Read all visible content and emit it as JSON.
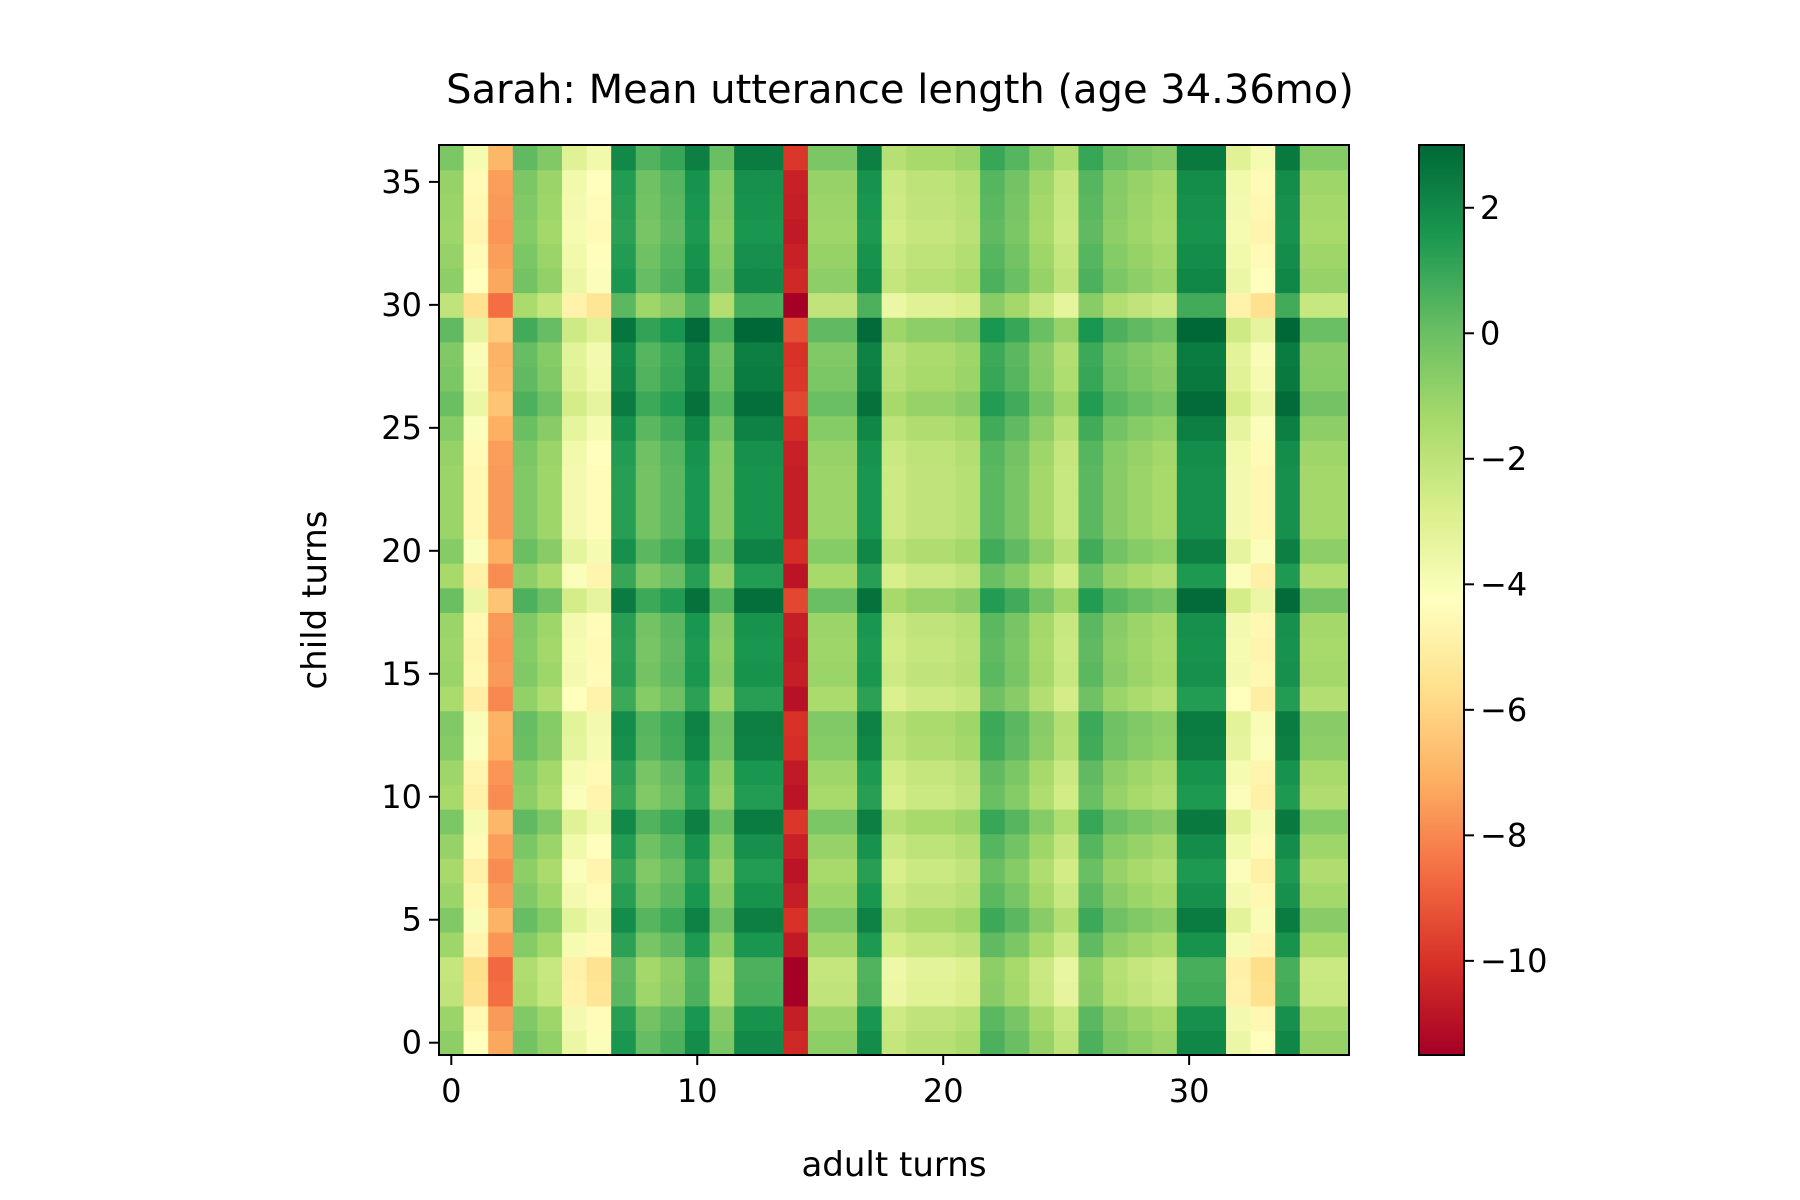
{
  "chart_data": {
    "type": "heatmap",
    "title": "Sarah: Mean utterance length (age 34.36mo)",
    "xlabel": "adult turns",
    "ylabel": "child turns",
    "colormap": "RdYlGn",
    "xlim": [
      -0.5,
      36.5
    ],
    "ylim": [
      -0.5,
      36.5
    ],
    "color_range": [
      -11.5,
      3.0
    ],
    "x_ticks": [
      0,
      10,
      20,
      30
    ],
    "y_ticks": [
      0,
      5,
      10,
      15,
      20,
      25,
      30,
      35
    ],
    "colorbar_ticks": [
      2,
      0,
      -2,
      -4,
      -6,
      -8,
      -10
    ],
    "tick_labels": {
      "x": [
        "0",
        "10",
        "20",
        "30"
      ],
      "y": [
        "0",
        "5",
        "10",
        "15",
        "20",
        "25",
        "30",
        "35"
      ],
      "colorbar": [
        "2",
        "0",
        "−2",
        "−4",
        "−6",
        "−8",
        "−10"
      ]
    },
    "value_model": "value[row][col] = row_effect[row] + col_effect[col]",
    "col_effect": [
      -0.8,
      -4.3,
      -7.3,
      -0.2,
      -0.9,
      -3.5,
      -4.1,
      1.6,
      0.1,
      0.6,
      1.9,
      -0.4,
      2.0,
      2.0,
      -10.3,
      -0.8,
      -0.8,
      1.9,
      -2.2,
      -1.8,
      -1.8,
      -1.5,
      0.6,
      0.0,
      -1.0,
      -2.0,
      0.6,
      -0.4,
      -0.8,
      -1.1,
      2.1,
      2.1,
      -3.5,
      -4.3,
      2.1,
      -1.0,
      -1.0
    ],
    "row_effect": [
      0.0,
      -0.3,
      -1.3,
      -1.4,
      -0.4,
      0.3,
      -0.3,
      -0.6,
      -0.2,
      0.4,
      -0.6,
      -0.4,
      0.2,
      0.3,
      -0.7,
      -0.3,
      -0.4,
      -0.3,
      0.8,
      -0.6,
      0.2,
      -0.3,
      -0.3,
      -0.3,
      -0.2,
      0.2,
      0.8,
      0.4,
      0.3,
      1.0,
      -1.3,
      0.0,
      -0.2,
      -0.4,
      -0.3,
      -0.2,
      0.4
    ]
  }
}
